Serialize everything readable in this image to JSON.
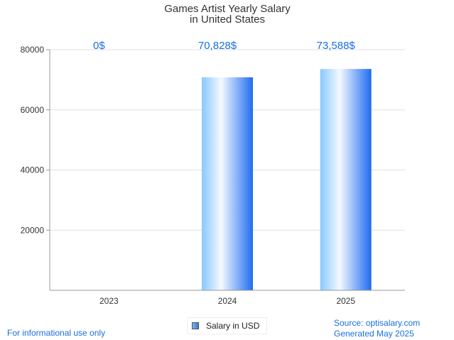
{
  "chart_data": {
    "type": "bar",
    "title": [
      "Games Artist Yearly Salary",
      "in United States"
    ],
    "categories": [
      "2023",
      "2024",
      "2025"
    ],
    "values": [
      0,
      70828,
      73588
    ],
    "value_labels": [
      "0$",
      "70,828$",
      "73,588$"
    ],
    "ylim": [
      0,
      80000
    ],
    "yticks": [
      "20000",
      "40000",
      "60000",
      "80000"
    ],
    "grid": true,
    "legend": {
      "position": "bottom",
      "entries": [
        "Salary in USD"
      ]
    },
    "colors": {
      "bar_light": "#e8f3ff",
      "bar_mid": "#89c8ff",
      "bar_dark": "#1f6cf0",
      "label": "#1a6fe0"
    }
  },
  "footer": {
    "left": "For informational use only",
    "source": "Source: optisalary.com",
    "generated": "Generated May 2025"
  }
}
